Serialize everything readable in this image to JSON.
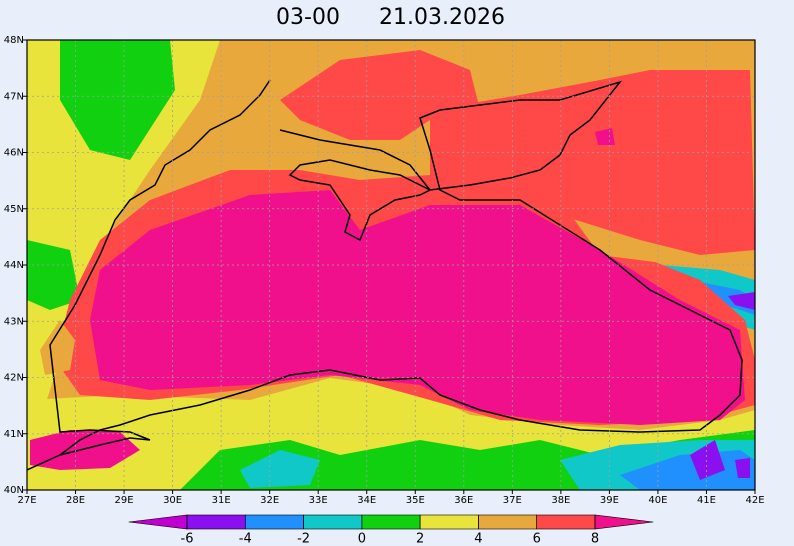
{
  "title": {
    "time": "03-00",
    "date": "21.03.2026"
  },
  "map": {
    "lon_labels": [
      "27E",
      "28E",
      "29E",
      "30E",
      "31E",
      "32E",
      "33E",
      "34E",
      "35E",
      "36E",
      "37E",
      "38E",
      "39E",
      "40E",
      "41E",
      "42E"
    ],
    "lat_labels": [
      "40N",
      "41N",
      "42N",
      "43N",
      "44N",
      "45N",
      "46N",
      "47N",
      "48N"
    ]
  },
  "colorbar": {
    "ticks": [
      -6,
      -4,
      -2,
      0,
      2,
      4,
      6,
      8
    ],
    "colors": [
      "#c000d0",
      "#8a10f0",
      "#2090ff",
      "#10c8c8",
      "#10d010",
      "#e8e43c",
      "#e8a83c",
      "#ff4848",
      "#f0108c"
    ]
  }
}
